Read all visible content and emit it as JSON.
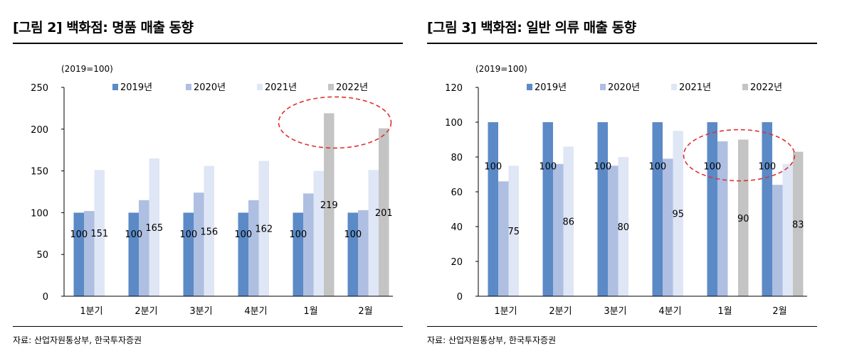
{
  "charts": [
    {
      "title": "[그림 2] 백화점: 명품 매출 동향",
      "source": "자료: 산업자원통상부, 한국투자증권",
      "chart_data": {
        "type": "bar",
        "unit_label": "(2019=100)",
        "categories": [
          "1분기",
          "2분기",
          "3분기",
          "4분기",
          "1월",
          "2월"
        ],
        "series": [
          {
            "name": "2019년",
            "color": "#5b8ac6",
            "values": [
              100,
              100,
              100,
              100,
              100,
              100
            ]
          },
          {
            "name": "2020년",
            "color": "#aebfe1",
            "values": [
              102,
              115,
              124,
              115,
              123,
              103
            ]
          },
          {
            "name": "2021년",
            "color": "#dfe6f5",
            "values": [
              151,
              165,
              156,
              162,
              150,
              151
            ]
          },
          {
            "name": "2022년",
            "color": "#c4c4c4",
            "values": [
              null,
              null,
              null,
              null,
              219,
              201
            ]
          }
        ],
        "data_labels": {
          "2019년": [
            "100",
            "100",
            "100",
            "100",
            "100",
            "100"
          ],
          "2021년": [
            "151",
            "165",
            "156",
            "162",
            "",
            ""
          ],
          "2022년": [
            "",
            "",
            "",
            "",
            "219",
            "201"
          ]
        },
        "ylim": [
          0,
          250
        ],
        "yticks": [
          0,
          50,
          100,
          150,
          200,
          250
        ],
        "legend_position": "top",
        "highlight": "dashed-ellipse-around-2022-bars",
        "highlight_color": "#e03030"
      }
    },
    {
      "title": "[그림 3] 백화점: 일반 의류 매출 동향",
      "source": "자료: 산업자원통상부, 한국투자증권",
      "chart_data": {
        "type": "bar",
        "unit_label": "(2019=100)",
        "categories": [
          "1분기",
          "2분기",
          "3분기",
          "4분기",
          "1월",
          "2월"
        ],
        "series": [
          {
            "name": "2019년",
            "color": "#5b8ac6",
            "values": [
              100,
              100,
              100,
              100,
              100,
              100
            ]
          },
          {
            "name": "2020년",
            "color": "#aebfe1",
            "values": [
              66,
              76,
              75,
              79,
              89,
              64
            ]
          },
          {
            "name": "2021년",
            "color": "#dfe6f5",
            "values": [
              75,
              86,
              80,
              95,
              0,
              76
            ]
          },
          {
            "name": "2022년",
            "color": "#c4c4c4",
            "values": [
              null,
              null,
              null,
              null,
              90,
              83
            ]
          }
        ],
        "data_labels": {
          "2019년": [
            "100",
            "100",
            "100",
            "100",
            "100",
            "100"
          ],
          "2021년": [
            "75",
            "86",
            "80",
            "95",
            "",
            ""
          ],
          "2022년": [
            "",
            "",
            "",
            "",
            "90",
            "83"
          ]
        },
        "ylim": [
          0,
          120
        ],
        "yticks": [
          0,
          20,
          40,
          60,
          80,
          100,
          120
        ],
        "legend_position": "top",
        "highlight": "dashed-ellipse-around-1월-bars",
        "highlight_color": "#e03030"
      }
    }
  ]
}
